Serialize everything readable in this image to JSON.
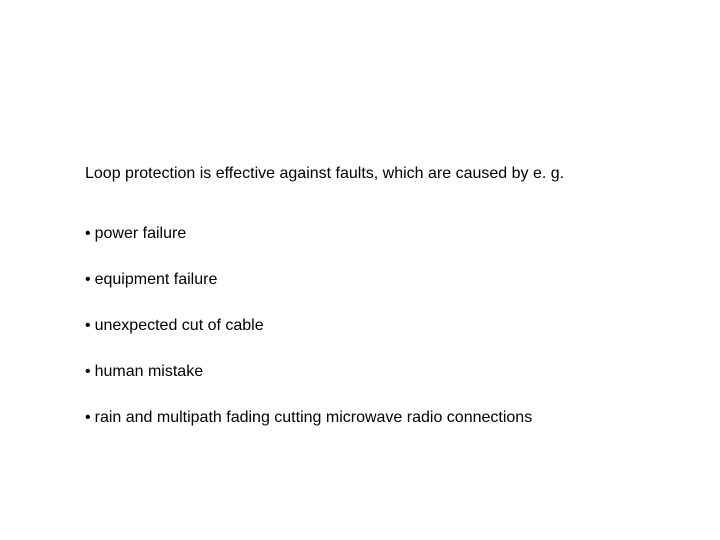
{
  "text_color": "#000000",
  "background_color": "#ffffff",
  "font_family": "Arial, Helvetica, sans-serif",
  "intro_fontsize": 16,
  "bullet_fontsize": 16,
  "intro": "Loop protection is effective against faults, which are caused by e. g.",
  "bullets": [
    "power failure",
    "equipment failure",
    "unexpected cut of cable",
    "human mistake",
    "rain and multipath fading cutting microwave radio connections"
  ],
  "bullet_marker": "•"
}
